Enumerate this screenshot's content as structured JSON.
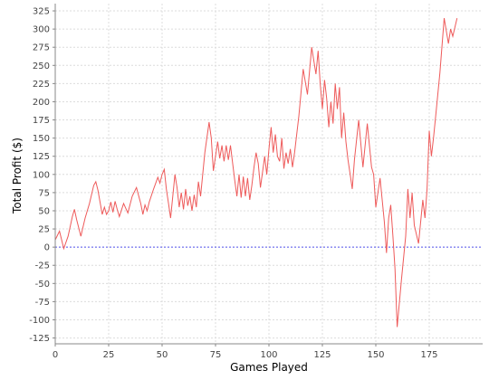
{
  "chart_data": {
    "type": "line",
    "title": "",
    "xlabel": "Games Played",
    "ylabel": "Total Profit ($)",
    "xlim": [
      0,
      200
    ],
    "ylim": [
      -133,
      335
    ],
    "x_ticks": [
      0,
      25,
      50,
      75,
      100,
      125,
      150,
      175
    ],
    "y_ticks": [
      -125,
      -100,
      -75,
      -50,
      -25,
      0,
      25,
      50,
      75,
      100,
      125,
      150,
      175,
      200,
      225,
      250,
      275,
      300,
      325
    ],
    "grid": true,
    "zero_line": true,
    "colors": {
      "series": "#ee5a5a",
      "zero_line": "#5555ee",
      "grid": "#dcdcdc",
      "axis": "#888888"
    },
    "series": [
      {
        "x": [
          0,
          2,
          4,
          6,
          8,
          9,
          10,
          12,
          14,
          16,
          18,
          19,
          20,
          22,
          23,
          24,
          25,
          26,
          27,
          28,
          29,
          30,
          32,
          34,
          36,
          38,
          40,
          41,
          42,
          43,
          44,
          46,
          48,
          49,
          50,
          51,
          52,
          53,
          54,
          56,
          57,
          58,
          59,
          60,
          61,
          62,
          63,
          64,
          65,
          66,
          67,
          68,
          70,
          72,
          73,
          74,
          76,
          77,
          78,
          79,
          80,
          81,
          82,
          84,
          85,
          86,
          87,
          88,
          89,
          90,
          91,
          92,
          93,
          94,
          95,
          96,
          98,
          99,
          100,
          101,
          102,
          103,
          104,
          105,
          106,
          107,
          108,
          109,
          110,
          111,
          112,
          114,
          116,
          118,
          120,
          122,
          123,
          124,
          125,
          126,
          127,
          128,
          129,
          130,
          131,
          132,
          133,
          134,
          135,
          136,
          137,
          138,
          139,
          140,
          142,
          144,
          146,
          148,
          149,
          150,
          152,
          154,
          155,
          156,
          157,
          158,
          159,
          160,
          162,
          164,
          165,
          166,
          167,
          168,
          170,
          172,
          173,
          174,
          175,
          176,
          177,
          178,
          180,
          182,
          184,
          185,
          186,
          188
        ],
        "values": [
          10,
          22,
          -2,
          15,
          42,
          52,
          38,
          15,
          40,
          60,
          85,
          90,
          78,
          45,
          55,
          45,
          50,
          62,
          48,
          63,
          52,
          42,
          60,
          47,
          70,
          82,
          60,
          45,
          58,
          50,
          62,
          80,
          96,
          88,
          100,
          107,
          80,
          60,
          40,
          100,
          82,
          55,
          75,
          52,
          80,
          57,
          70,
          50,
          72,
          55,
          90,
          70,
          130,
          172,
          150,
          105,
          145,
          122,
          140,
          118,
          140,
          120,
          140,
          92,
          70,
          100,
          68,
          97,
          70,
          95,
          65,
          85,
          110,
          130,
          115,
          82,
          125,
          100,
          135,
          165,
          130,
          155,
          125,
          118,
          150,
          108,
          130,
          115,
          135,
          110,
          130,
          180,
          245,
          210,
          275,
          238,
          270,
          225,
          190,
          230,
          205,
          165,
          200,
          170,
          225,
          190,
          220,
          150,
          185,
          145,
          120,
          100,
          80,
          120,
          175,
          110,
          170,
          110,
          100,
          55,
          95,
          35,
          -8,
          40,
          58,
          15,
          -30,
          -110,
          -45,
          15,
          80,
          40,
          75,
          30,
          5,
          65,
          40,
          80,
          160,
          125,
          150,
          180,
          240,
          315,
          280,
          300,
          290,
          315
        ]
      }
    ]
  }
}
